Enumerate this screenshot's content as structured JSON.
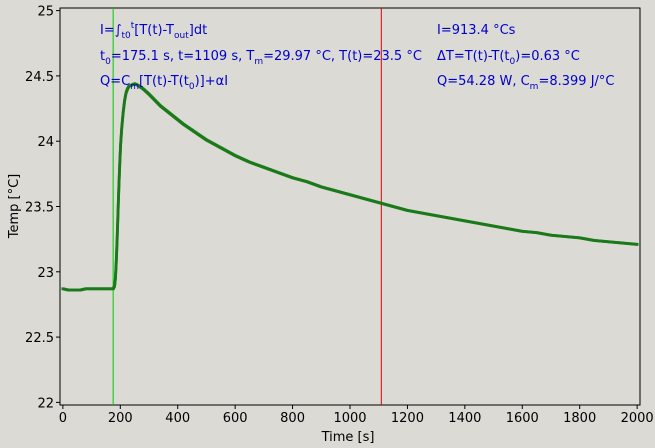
{
  "chart_data": {
    "type": "scatter",
    "xlabel": "Time [s]",
    "ylabel": "Temp [°C]",
    "xlim": [
      -10,
      2010
    ],
    "ylim": [
      21.98,
      25.02
    ],
    "x_ticks": [
      0,
      200,
      400,
      600,
      800,
      1000,
      1200,
      1400,
      1600,
      1800,
      2000
    ],
    "y_ticks": [
      22,
      22.5,
      23,
      23.5,
      24,
      24.5,
      25
    ],
    "x_tick_labels": [
      "0",
      "200",
      "400",
      "600",
      "800",
      "1000",
      "1200",
      "1400",
      "1600",
      "1800",
      "2000"
    ],
    "y_tick_labels": [
      "22",
      "22.5",
      "23",
      "23.5",
      "24",
      "24.5",
      "25"
    ],
    "grid": false,
    "series": [
      {
        "color": "#1a7a1a",
        "points": [
          [
            0,
            22.87
          ],
          [
            20,
            22.86
          ],
          [
            40,
            22.86
          ],
          [
            60,
            22.86
          ],
          [
            80,
            22.87
          ],
          [
            100,
            22.87
          ],
          [
            120,
            22.87
          ],
          [
            140,
            22.87
          ],
          [
            160,
            22.87
          ],
          [
            175,
            22.87
          ],
          [
            180,
            22.89
          ],
          [
            183,
            22.95
          ],
          [
            186,
            23.08
          ],
          [
            189,
            23.25
          ],
          [
            192,
            23.45
          ],
          [
            195,
            23.65
          ],
          [
            198,
            23.82
          ],
          [
            201,
            23.97
          ],
          [
            205,
            24.1
          ],
          [
            210,
            24.22
          ],
          [
            215,
            24.31
          ],
          [
            220,
            24.37
          ],
          [
            225,
            24.4
          ],
          [
            230,
            24.42
          ],
          [
            240,
            24.43
          ],
          [
            250,
            24.44
          ],
          [
            260,
            24.43
          ],
          [
            280,
            24.4
          ],
          [
            300,
            24.36
          ],
          [
            340,
            24.27
          ],
          [
            380,
            24.2
          ],
          [
            420,
            24.13
          ],
          [
            460,
            24.07
          ],
          [
            500,
            24.01
          ],
          [
            550,
            23.95
          ],
          [
            600,
            23.89
          ],
          [
            650,
            23.84
          ],
          [
            700,
            23.8
          ],
          [
            750,
            23.76
          ],
          [
            800,
            23.72
          ],
          [
            850,
            23.69
          ],
          [
            900,
            23.65
          ],
          [
            950,
            23.62
          ],
          [
            1000,
            23.59
          ],
          [
            1050,
            23.56
          ],
          [
            1100,
            23.53
          ],
          [
            1150,
            23.5
          ],
          [
            1200,
            23.47
          ],
          [
            1250,
            23.45
          ],
          [
            1300,
            23.43
          ],
          [
            1350,
            23.41
          ],
          [
            1400,
            23.39
          ],
          [
            1450,
            23.37
          ],
          [
            1500,
            23.35
          ],
          [
            1550,
            23.33
          ],
          [
            1600,
            23.31
          ],
          [
            1650,
            23.3
          ],
          [
            1700,
            23.28
          ],
          [
            1750,
            23.27
          ],
          [
            1800,
            23.26
          ],
          [
            1850,
            23.24
          ],
          [
            1900,
            23.23
          ],
          [
            1950,
            23.22
          ],
          [
            2000,
            23.21
          ]
        ]
      }
    ],
    "vlines": [
      {
        "x": 175.1,
        "color": "#00cc00"
      },
      {
        "x": 1109,
        "color": "#dd0000"
      }
    ]
  },
  "annotations": {
    "integral": {
      "prefix": "I=∫",
      "lower": "t0",
      "upper": "t",
      "mid": "[T(t)-T",
      "sub": "out",
      "suffix": "]dt"
    },
    "t0": {
      "t": "t",
      "t_sub": "0",
      "rest": "=175.1 s,   t=1109 s,   T",
      "tm_sub": "m",
      "rest2": "=29.97 °C,  T(t)=23.5 °C"
    },
    "q_formula": {
      "prefix": "Q=C",
      "sub": "m",
      "rest": "[T(t)-T(t",
      "sub2": "0",
      "suffix": ")]+αI"
    },
    "integral_value": "I=913.4 °Cs",
    "delta": {
      "prefix": "ΔT=T(t)-T(t",
      "sub": "0",
      "suffix": ")=0.63 °C"
    },
    "q_value": {
      "prefix": "Q=54.28 W,   C",
      "sub": "m",
      "suffix": "=8.399 J/°C"
    }
  }
}
